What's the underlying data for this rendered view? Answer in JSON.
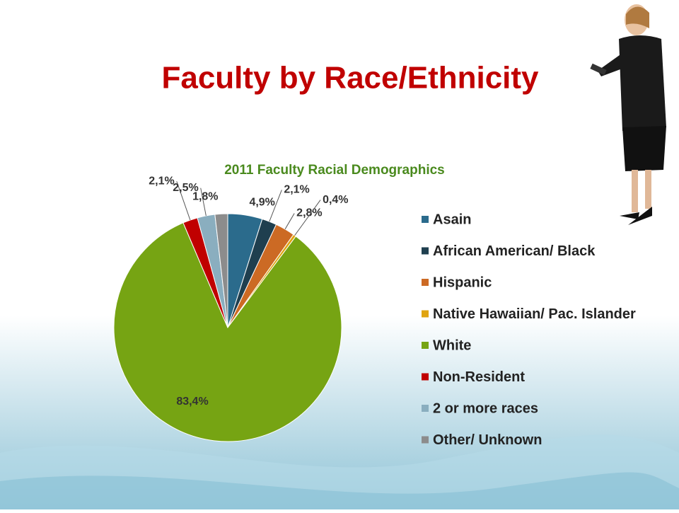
{
  "slide": {
    "title": "Faculty by Race/Ethnicity"
  },
  "chart_data": {
    "type": "pie",
    "title": "2011 Faculty Racial Demographics",
    "categories": [
      "Asain",
      "African American/ Black",
      "Hispanic",
      "Native Hawaiian/ Pac. Islander",
      "White",
      "Non-Resident",
      "2 or more races",
      "Other/ Unknown"
    ],
    "values": [
      4.9,
      2.1,
      2.8,
      0.4,
      83.4,
      2.1,
      2.5,
      1.8
    ],
    "value_labels": [
      "4,9%",
      "2,1%",
      "2,8%",
      "0,4%",
      "83,4%",
      "2,1%",
      "2,5%",
      "1,8%"
    ],
    "colors": [
      "#2b6b8c",
      "#1f3f4f",
      "#cc6a24",
      "#e0a410",
      "#76a413",
      "#c00000",
      "#8aaebf",
      "#8c8c8c"
    ],
    "legend": "right"
  }
}
